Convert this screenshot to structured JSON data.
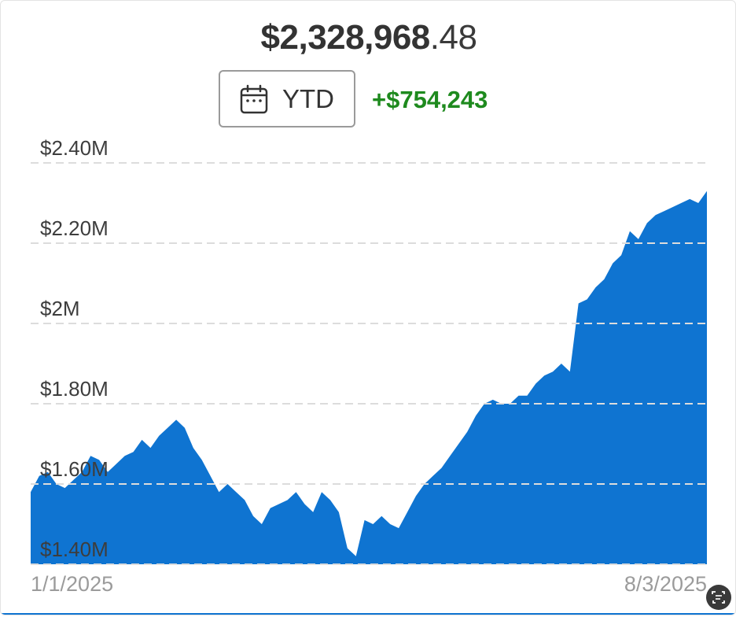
{
  "header": {
    "balance_whole": "$2,328,968",
    "balance_cents": ".48",
    "period_label": "YTD",
    "change": "+$754,243"
  },
  "icons": {
    "period": "calendar-icon",
    "corner": "scan-icon"
  },
  "colors": {
    "area_fill": "#0f74d1",
    "change_text": "#1e8a1e"
  },
  "chart_data": {
    "type": "area",
    "title": "",
    "xlabel": "",
    "ylabel": "",
    "ylim": [
      1400000,
      2400000
    ],
    "yticks": [
      {
        "value": 2400000,
        "label": "$2.40M"
      },
      {
        "value": 2200000,
        "label": "$2.20M"
      },
      {
        "value": 2000000,
        "label": "$2M"
      },
      {
        "value": 1800000,
        "label": "$1.80M"
      },
      {
        "value": 1600000,
        "label": "$1.60M"
      },
      {
        "value": 1400000,
        "label": "$1.40M"
      }
    ],
    "x_start_label": "1/1/2025",
    "x_end_label": "8/3/2025",
    "grid": true,
    "series": [
      {
        "values": [
          1580000,
          1620000,
          1630000,
          1600000,
          1590000,
          1610000,
          1630000,
          1670000,
          1660000,
          1630000,
          1650000,
          1670000,
          1680000,
          1710000,
          1690000,
          1720000,
          1740000,
          1760000,
          1740000,
          1690000,
          1660000,
          1620000,
          1580000,
          1600000,
          1580000,
          1560000,
          1520000,
          1500000,
          1540000,
          1550000,
          1560000,
          1580000,
          1550000,
          1530000,
          1580000,
          1560000,
          1530000,
          1440000,
          1420000,
          1510000,
          1500000,
          1520000,
          1500000,
          1490000,
          1530000,
          1570000,
          1600000,
          1620000,
          1640000,
          1670000,
          1700000,
          1730000,
          1770000,
          1800000,
          1810000,
          1800000,
          1800000,
          1820000,
          1820000,
          1850000,
          1870000,
          1880000,
          1900000,
          1880000,
          2050000,
          2060000,
          2090000,
          2110000,
          2150000,
          2170000,
          2230000,
          2210000,
          2250000,
          2270000,
          2280000,
          2290000,
          2300000,
          2310000,
          2300000,
          2330000
        ]
      }
    ]
  }
}
